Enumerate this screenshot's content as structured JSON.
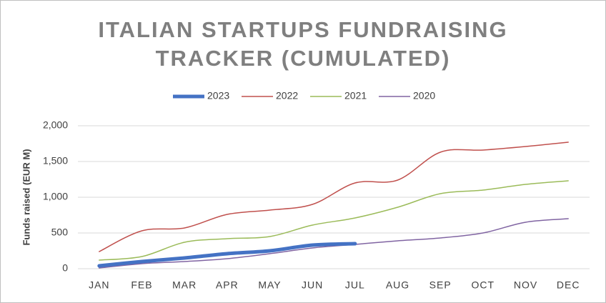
{
  "chart_data": {
    "type": "line",
    "title": [
      "ITALIAN STARTUPS FUNDRAISING",
      "TRACKER (CUMULATED)"
    ],
    "y_label": "Funds raised (EUR M)",
    "categories": [
      "JAN",
      "FEB",
      "MAR",
      "APR",
      "MAY",
      "JUN",
      "JUL",
      "AUG",
      "SEP",
      "OCT",
      "NOV",
      "DEC"
    ],
    "series": [
      {
        "name": "2023",
        "color": "#4472c4",
        "line_width": 5,
        "values": [
          40,
          100,
          150,
          210,
          250,
          330,
          350,
          null,
          null,
          null,
          null,
          null
        ]
      },
      {
        "name": "2022",
        "color": "#c0504d",
        "line_width": 1.5,
        "values": [
          240,
          530,
          570,
          760,
          820,
          900,
          1200,
          1240,
          1630,
          1660,
          1710,
          1770
        ]
      },
      {
        "name": "2021",
        "color": "#9bbb59",
        "line_width": 1.5,
        "values": [
          120,
          170,
          370,
          420,
          450,
          610,
          710,
          860,
          1050,
          1100,
          1180,
          1230
        ]
      },
      {
        "name": "2020",
        "color": "#8064a2",
        "line_width": 1.5,
        "values": [
          10,
          70,
          100,
          140,
          210,
          290,
          340,
          390,
          430,
          500,
          650,
          700
        ]
      }
    ],
    "ylim": [
      0,
      2000
    ],
    "yticks": [
      0,
      500,
      {
        "value": 1000,
        "label": "1,000"
      },
      {
        "value": 1500,
        "label": "1,500"
      },
      {
        "value": 2000,
        "label": "2,000"
      }
    ],
    "grid": true,
    "legend": "top"
  }
}
